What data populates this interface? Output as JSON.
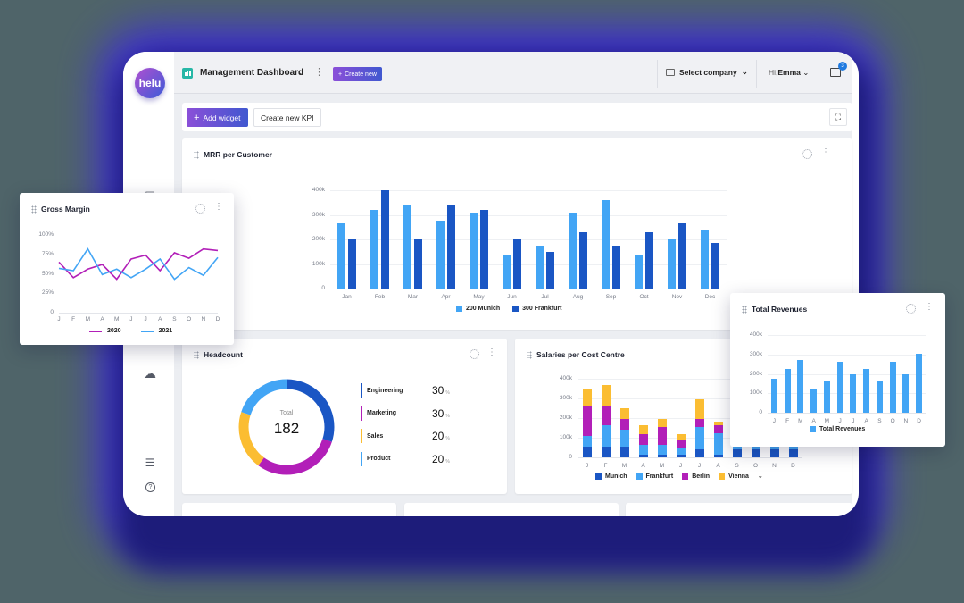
{
  "app": {
    "logo_text": "helu",
    "title": "Management Dashboard",
    "create_new_label": "Create new",
    "select_company_label": "Select company",
    "greeting": "Hi,",
    "user_name": "Emma",
    "notification_count": "3",
    "colors": {
      "accent_start": "#8b4fd8",
      "accent_end": "#4058d0",
      "app_icon": "#27b7a6",
      "background": "#4f6469",
      "glow": "#3f2fd8"
    }
  },
  "sidebar": {
    "icons": [
      "reports-icon",
      "cloud-sync-icon",
      "inbox-icon",
      "help-icon"
    ]
  },
  "toolbar": {
    "add_widget_label": "Add widget",
    "create_kpi_label": "Create new KPI",
    "fullscreen_icon": "expand-icon"
  },
  "widgets": {
    "mrr": {
      "title": "MRR per Customer",
      "legend": [
        "200 Munich",
        "300 Frankfurt"
      ]
    },
    "gross_margin": {
      "title": "Gross Margin",
      "legend": [
        "2020",
        "2021"
      ]
    },
    "headcount": {
      "title": "Headcount",
      "total_label": "Total",
      "total_value": "182",
      "segments": [
        {
          "name": "Engineering",
          "pct": "30",
          "color": "#1a56c4"
        },
        {
          "name": "Marketing",
          "pct": "30",
          "color": "#b21fb8"
        },
        {
          "name": "Sales",
          "pct": "20",
          "color": "#fbbd32"
        },
        {
          "name": "Product",
          "pct": "20",
          "color": "#42a5f5"
        }
      ],
      "pct_unit": "%"
    },
    "salaries": {
      "title": "Salaries per Cost Centre",
      "legend": [
        "Munich",
        "Frankfurt",
        "Berlin",
        "Vienna"
      ]
    },
    "total_revenues": {
      "title": "Total Revenues",
      "legend": [
        "Total Revenues"
      ]
    }
  },
  "chart_data": [
    {
      "id": "mrr",
      "type": "bar",
      "title": "MRR per Customer",
      "categories": [
        "Jan",
        "Feb",
        "Mar",
        "Apr",
        "May",
        "Jun",
        "Jul",
        "Aug",
        "Sep",
        "Oct",
        "Nov",
        "Dec"
      ],
      "series": [
        {
          "name": "200 Munich",
          "color": "#42a5f5",
          "values": [
            265,
            320,
            340,
            275,
            310,
            135,
            175,
            310,
            360,
            140,
            200,
            240
          ]
        },
        {
          "name": "300 Frankfurt",
          "color": "#1a56c4",
          "values": [
            200,
            400,
            200,
            340,
            320,
            200,
            150,
            230,
            175,
            230,
            265,
            185
          ]
        }
      ],
      "yticks": [
        "0",
        "100k",
        "200k",
        "300k",
        "400k"
      ],
      "ylim": [
        0,
        400
      ],
      "yunit": "k",
      "grid": true,
      "legend_position": "bottom"
    },
    {
      "id": "gross_margin",
      "type": "line",
      "title": "Gross Margin",
      "categories": [
        "J",
        "F",
        "M",
        "A",
        "M",
        "J",
        "J",
        "A",
        "S",
        "O",
        "N",
        "D"
      ],
      "series": [
        {
          "name": "2020",
          "color": "#b21fb8",
          "values": [
            65,
            45,
            56,
            62,
            43,
            69,
            74,
            54,
            77,
            70,
            82,
            80
          ]
        },
        {
          "name": "2021",
          "color": "#42a5f5",
          "values": [
            57,
            54,
            82,
            49,
            56,
            45,
            56,
            69,
            43,
            58,
            48,
            71
          ]
        }
      ],
      "yticks": [
        "0",
        "25%",
        "50%",
        "75%",
        "100%"
      ],
      "ylim": [
        0,
        100
      ],
      "grid": false,
      "legend_position": "bottom"
    },
    {
      "id": "headcount",
      "type": "pie",
      "title": "Headcount",
      "categories": [
        "Engineering",
        "Marketing",
        "Sales",
        "Product"
      ],
      "values": [
        30,
        30,
        20,
        20
      ],
      "center_label": "Total 182"
    },
    {
      "id": "salaries",
      "type": "bar",
      "stacked": true,
      "title": "Salaries per Cost Centre",
      "categories": [
        "J",
        "F",
        "M",
        "A",
        "M",
        "J",
        "J",
        "A",
        "S",
        "O",
        "N",
        "D"
      ],
      "series": [
        {
          "name": "Munich",
          "color": "#1a56c4",
          "values": [
            55,
            55,
            55,
            15,
            15,
            15,
            39,
            12,
            40,
            40,
            40,
            40
          ]
        },
        {
          "name": "Frankfurt",
          "color": "#42a5f5",
          "values": [
            55,
            109,
            84,
            48,
            48,
            30,
            115,
            109,
            60,
            40,
            70,
            60
          ]
        },
        {
          "name": "Berlin",
          "color": "#b21fb8",
          "values": [
            148,
            98,
            55,
            57,
            91,
            43,
            43,
            43,
            40,
            40,
            40,
            40
          ]
        },
        {
          "name": "Vienna",
          "color": "#fbbd32",
          "values": [
            87,
            104,
            54,
            42,
            43,
            30,
            99,
            20,
            30,
            30,
            30,
            30
          ]
        }
      ],
      "yticks": [
        "0",
        "100k",
        "200k",
        "300k",
        "400k"
      ],
      "ylim": [
        0,
        400
      ],
      "grid": true,
      "legend_position": "bottom"
    },
    {
      "id": "total_revenues",
      "type": "bar",
      "title": "Total Revenues",
      "categories": [
        "J",
        "F",
        "M",
        "A",
        "M",
        "J",
        "J",
        "A",
        "S",
        "O",
        "N",
        "D"
      ],
      "series": [
        {
          "name": "Total Revenues",
          "color": "#42a5f5",
          "values": [
            175,
            225,
            270,
            120,
            165,
            260,
            200,
            225,
            165,
            260,
            200,
            305
          ]
        }
      ],
      "yticks": [
        "0",
        "100k",
        "200k",
        "300k",
        "400k"
      ],
      "ylim": [
        0,
        400
      ],
      "grid": true,
      "legend_position": "bottom"
    }
  ]
}
